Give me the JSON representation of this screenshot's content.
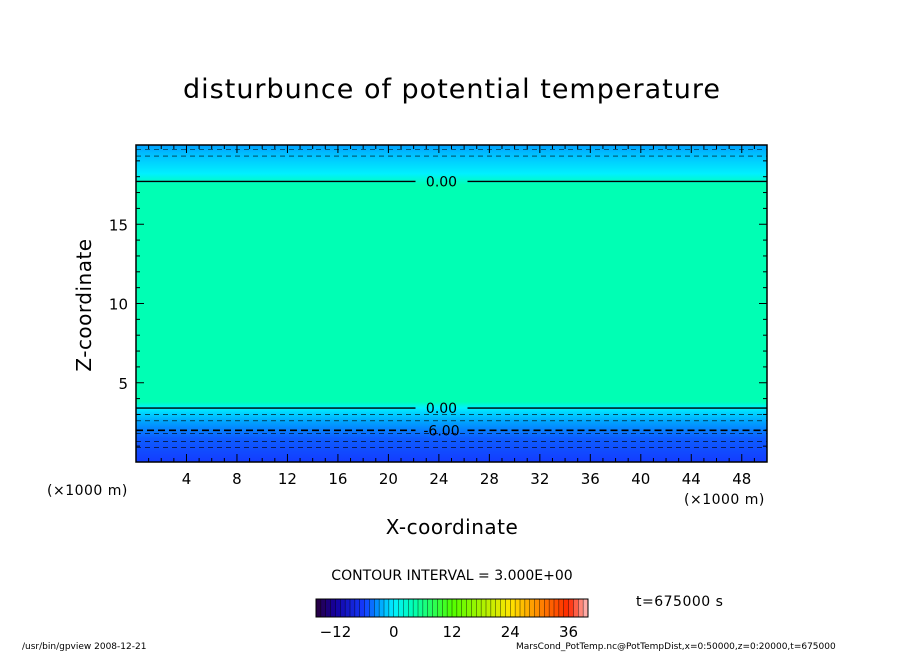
{
  "chart_data": {
    "type": "heatmap",
    "title": "disturbunce of potential temperature",
    "xlabel": "X-coordinate",
    "ylabel": "Z-coordinate",
    "x_unit_label": "(×1000 m)",
    "xlim": [
      0,
      50
    ],
    "ylim": [
      0,
      20
    ],
    "x_ticks": [
      4,
      8,
      12,
      16,
      20,
      24,
      28,
      32,
      36,
      40,
      44,
      48
    ],
    "y_ticks": [
      5,
      10,
      15
    ],
    "contour_lines": [
      {
        "value": 0.0,
        "label": "0.00",
        "z": 17.7,
        "style": "solid"
      },
      {
        "value": 0.0,
        "label": "0.00",
        "z": 3.4,
        "style": "solid"
      },
      {
        "value": -6.0,
        "label": "-6.00",
        "z": 2.0,
        "style": "dashed"
      }
    ],
    "field_profile": [
      {
        "z": 0.0,
        "value": -6
      },
      {
        "z": 1.5,
        "value": -5
      },
      {
        "z": 2.5,
        "value": -3
      },
      {
        "z": 3.4,
        "value": 0
      },
      {
        "z": 3.8,
        "value": 4
      },
      {
        "z": 17.5,
        "value": 4
      },
      {
        "z": 18.2,
        "value": 0
      },
      {
        "z": 19.5,
        "value": -2
      },
      {
        "z": 20.0,
        "value": -3
      }
    ],
    "colorbar": {
      "ticks": [
        -12,
        0,
        12,
        24,
        36
      ],
      "range": [
        -16,
        40
      ]
    },
    "contour_interval_text": "CONTOUR INTERVAL = 3.000E+00",
    "time_text": "t=675000 s"
  },
  "footer": {
    "left": "/usr/bin/gpview   2008-12-21",
    "right": "MarsCond_PotTemp.nc@PotTempDist,x=0:50000,z=0:20000,t=675000"
  }
}
